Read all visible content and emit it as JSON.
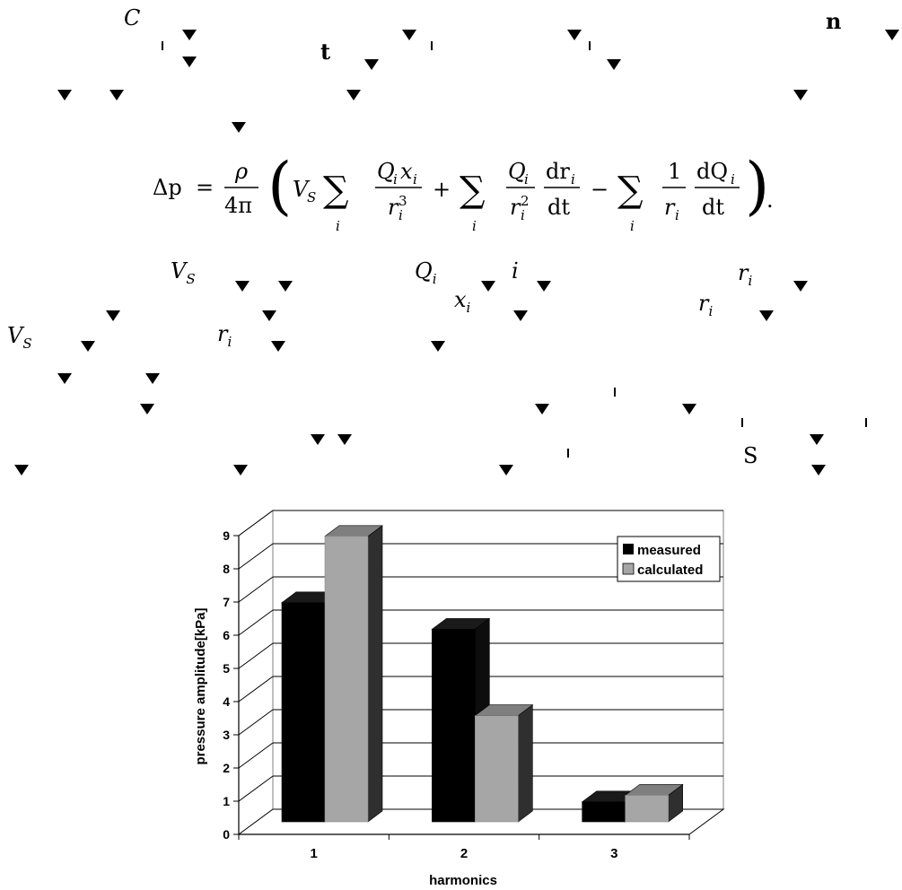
{
  "text_fragments": {
    "C": "C",
    "t": "t",
    "n": "n",
    "S": "S",
    "VS": "V",
    "VS_sub": "S",
    "Qi": "Q",
    "i": "i",
    "xi": "x",
    "ri": "r",
    "sub_i": "i"
  },
  "equation": {
    "lhs": "Δp",
    "eq": "=",
    "rho": "ρ",
    "four_pi": "4π",
    "VS": "V",
    "VS_sub": "S",
    "sum": "∑",
    "i": "i",
    "term1_num": "Q",
    "term1_num_sub": "i",
    "term1_num2": "x",
    "term1_den": "r",
    "term1_den_sup": "3",
    "plus": "+",
    "term2_num": "Q",
    "term2_den": "r",
    "term2_den_sup": "2",
    "d_num": "dr",
    "dt": "dt",
    "minus": "−",
    "one": "1",
    "dQ": "dQ",
    "open": "(",
    "close": ")",
    "period": "."
  },
  "chart_data": {
    "type": "bar",
    "categories": [
      "1",
      "2",
      "3"
    ],
    "series": [
      {
        "name": "measured",
        "values": [
          6.6,
          5.8,
          0.6
        ],
        "color": "#000000"
      },
      {
        "name": "calculated",
        "values": [
          8.6,
          3.2,
          0.8
        ],
        "color": "#a6a6a6"
      }
    ],
    "xlabel": "harmonics",
    "ylabel": "pressure amplitude[kPa]",
    "ylim": [
      0,
      9
    ],
    "yticks": [
      "0",
      "1",
      "2",
      "3",
      "4",
      "5",
      "6",
      "7",
      "8",
      "9"
    ],
    "grid": true,
    "legend_position": "top-right",
    "style": "3d-clustered"
  }
}
